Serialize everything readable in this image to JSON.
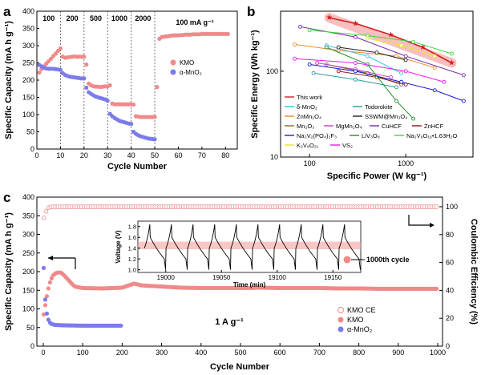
{
  "panels": {
    "a": {
      "letter": "a"
    },
    "b": {
      "letter": "b"
    },
    "c": {
      "letter": "c"
    }
  },
  "chart_data": [
    {
      "type": "scatter",
      "panel": "a",
      "xlabel": "Cycle Number",
      "ylabel": "Specific Capacity (mA h g⁻¹)",
      "xlim": [
        0,
        85
      ],
      "ylim": [
        0,
        400
      ],
      "xticks": [
        0,
        10,
        20,
        30,
        40,
        50,
        60,
        70,
        80
      ],
      "yticks": [
        0,
        50,
        100,
        150,
        200,
        250,
        300,
        350,
        400
      ],
      "segment_boundaries": [
        10,
        20,
        30,
        40,
        50
      ],
      "rate_labels": [
        "100",
        "200",
        "500",
        "1000",
        "2000",
        "100 mA g⁻¹"
      ],
      "series": [
        {
          "name": "KMO",
          "color": "#f08a8a",
          "x": [
            1,
            2,
            3,
            4,
            5,
            6,
            7,
            8,
            9,
            10,
            11,
            12,
            13,
            14,
            15,
            16,
            17,
            18,
            19,
            20,
            21,
            22,
            23,
            24,
            25,
            26,
            27,
            28,
            29,
            30,
            31,
            32,
            33,
            34,
            35,
            36,
            37,
            38,
            39,
            40,
            41,
            42,
            43,
            44,
            45,
            46,
            47,
            48,
            49,
            50,
            51,
            52,
            53,
            54,
            55,
            56,
            57,
            58,
            59,
            60,
            61,
            62,
            63,
            64,
            65,
            66,
            67,
            68,
            69,
            70,
            71,
            72,
            73,
            74,
            75,
            76,
            77,
            78,
            79,
            80,
            81
          ],
          "y": [
            222,
            232,
            240,
            248,
            255,
            262,
            270,
            277,
            285,
            292,
            268,
            265,
            266,
            267,
            268,
            269,
            268,
            268,
            268,
            268,
            245,
            190,
            185,
            182,
            181,
            181,
            180,
            181,
            182,
            182,
            185,
            132,
            130,
            130,
            130,
            130,
            130,
            130,
            130,
            130,
            129,
            95,
            94,
            93,
            93,
            93,
            93,
            93,
            93,
            93,
            180,
            320,
            325,
            326,
            327,
            328,
            329,
            330,
            330,
            330,
            331,
            331,
            332,
            332,
            332,
            333,
            333,
            333,
            333,
            334,
            334,
            334,
            334,
            334,
            334,
            334,
            334,
            334,
            334,
            334,
            334
          ]
        },
        {
          "name": "α-MnO₂",
          "color": "#7b7bea",
          "x": [
            1,
            2,
            3,
            4,
            5,
            6,
            7,
            8,
            9,
            10,
            11,
            12,
            13,
            14,
            15,
            16,
            17,
            18,
            19,
            20,
            21,
            22,
            23,
            24,
            25,
            26,
            27,
            28,
            29,
            30,
            31,
            32,
            33,
            34,
            35,
            36,
            37,
            38,
            39,
            40,
            41,
            42,
            43,
            44,
            45,
            46,
            47,
            48,
            49,
            50
          ],
          "y": [
            244,
            240,
            236,
            234,
            233,
            233,
            233,
            232,
            231,
            230,
            220,
            215,
            212,
            210,
            209,
            208,
            207,
            206,
            205,
            205,
            178,
            165,
            160,
            156,
            152,
            150,
            148,
            146,
            144,
            140,
            102,
            95,
            90,
            86,
            82,
            80,
            78,
            76,
            74,
            73,
            50,
            44,
            40,
            37,
            35,
            33,
            31,
            30,
            29,
            28
          ]
        }
      ]
    },
    {
      "type": "line",
      "panel": "b",
      "xlabel": "Specific Power (W kg⁻¹)",
      "ylabel": "Specific Energy (Wh kg⁻¹)",
      "xscale": "log",
      "yscale": "log",
      "xlim": [
        50,
        5000
      ],
      "ylim": [
        10,
        500
      ],
      "xticks": [
        100,
        1000
      ],
      "yticks": [
        10,
        100
      ],
      "series": [
        {
          "name": "This work",
          "color": "#d42020",
          "x": [
            160,
            300,
            700,
            1500,
            3000
          ],
          "y": [
            420,
            360,
            265,
            190,
            125
          ]
        },
        {
          "name": "δ-MnO₂",
          "color": "#2ec5e8",
          "x": [
            150,
            400,
            900
          ],
          "y": [
            200,
            150,
            95
          ]
        },
        {
          "name": "Todorokite",
          "color": "#2a9a9a",
          "x": [
            110,
            300,
            800
          ],
          "y": [
            95,
            80,
            65
          ]
        },
        {
          "name": "ZnMn₂O₄",
          "color": "#f08a1e",
          "x": [
            70,
            200,
            800,
            2000
          ],
          "y": [
            205,
            175,
            150,
            110
          ]
        },
        {
          "name": "SSWM@Mn₃O₄",
          "color": "#222222",
          "x": [
            200,
            500,
            1000
          ],
          "y": [
            190,
            165,
            135
          ]
        },
        {
          "name": "Mn₂O₃",
          "color": "#8b6a2a",
          "x": [
            150,
            400,
            900
          ],
          "y": [
            120,
            95,
            70
          ]
        },
        {
          "name": "MgMn₂O₄",
          "color": "#c040c0",
          "x": [
            120,
            300,
            700
          ],
          "y": [
            125,
            105,
            85
          ]
        },
        {
          "name": "CuHCF",
          "color": "#7a2aa8",
          "x": [
            80,
            300,
            1000,
            4000
          ],
          "y": [
            330,
            250,
            150,
            90
          ]
        },
        {
          "name": "ZnHCF",
          "color": "#8a1a1a",
          "x": [
            200,
            500,
            1000
          ],
          "y": [
            100,
            85,
            70
          ]
        },
        {
          "name": "Na₃V₂(PO₄)₂F₃",
          "color": "#1a1ad8",
          "x": [
            100,
            300,
            900,
            2000,
            4000
          ],
          "y": [
            120,
            100,
            75,
            60,
            45
          ]
        },
        {
          "name": "LiV₃O₈",
          "color": "#2a8a2a",
          "x": [
            150,
            400,
            800,
            1200
          ],
          "y": [
            190,
            120,
            45,
            28
          ]
        },
        {
          "name": "Na₂V₆O₁₆•1.63H₂O",
          "color": "#3ad83a",
          "x": [
            100,
            400,
            1200,
            3000
          ],
          "y": [
            300,
            260,
            220,
            160
          ]
        },
        {
          "name": "K₂V₈O₂₁",
          "color": "#e8e81a",
          "x": [
            400,
            900,
            2000
          ],
          "y": [
            240,
            200,
            150
          ]
        },
        {
          "name": "VS₂",
          "color": "#e81ae8",
          "x": [
            70,
            300,
            1000,
            2500
          ],
          "y": [
            140,
            125,
            100,
            75
          ]
        }
      ]
    },
    {
      "type": "scatter",
      "panel": "c",
      "xlabel": "Cycle Number",
      "ylabel": "Specific Capacity (mA h g⁻¹)",
      "y2label": "Coulombic Efficiency (%)",
      "xlim": [
        0,
        1000
      ],
      "ylim": [
        0,
        400
      ],
      "y2lim": [
        0,
        100
      ],
      "xticks": [
        0,
        100,
        200,
        300,
        400,
        500,
        600,
        700,
        800,
        900,
        1000
      ],
      "yticks": [
        0,
        50,
        100,
        150,
        200,
        250,
        300,
        350,
        400
      ],
      "y2ticks": [
        0,
        20,
        40,
        60,
        80,
        100
      ],
      "annotation": "1 A g⁻¹",
      "series": [
        {
          "name": "KMO CE",
          "axis": "y2",
          "color": "#f08a8a",
          "hollow": true,
          "x": [
            1,
            10,
            20,
            50,
            100,
            150,
            200,
            250,
            300,
            350,
            400,
            450,
            500,
            550,
            600,
            650,
            700,
            750,
            800,
            850,
            900,
            950,
            1000
          ],
          "y": [
            92,
            99,
            100,
            100,
            100,
            100,
            100,
            100,
            100,
            100,
            100,
            100,
            100,
            100,
            100,
            100,
            100,
            100,
            100,
            100,
            100,
            100,
            100
          ]
        },
        {
          "name": "KMO",
          "axis": "y",
          "color": "#f08a8a",
          "x": [
            1,
            5,
            10,
            15,
            20,
            25,
            30,
            35,
            40,
            45,
            50,
            60,
            70,
            80,
            100,
            150,
            200,
            230,
            250,
            300,
            350,
            400,
            450,
            500,
            550,
            600,
            650,
            700,
            750,
            800,
            850,
            900,
            950,
            1000
          ],
          "y": [
            85,
            110,
            140,
            165,
            180,
            190,
            195,
            197,
            198,
            197,
            193,
            182,
            170,
            160,
            156,
            155,
            157,
            168,
            163,
            160,
            157,
            156,
            156,
            156,
            157,
            156,
            156,
            156,
            155,
            155,
            154,
            154,
            154,
            154
          ]
        },
        {
          "name": "α-MnO₂",
          "axis": "y",
          "color": "#7b7bea",
          "x": [
            1,
            3,
            5,
            8,
            10,
            15,
            20,
            30,
            50,
            100,
            150,
            200
          ],
          "y": [
            210,
            160,
            125,
            95,
            80,
            65,
            60,
            57,
            56,
            55,
            55,
            55
          ]
        }
      ],
      "inset": {
        "xlabel": "Time (min)",
        "ylabel": "Voltage (V)",
        "xlim": [
          18975,
          19175
        ],
        "ylim": [
          0.95,
          1.9
        ],
        "xticks": [
          19000,
          19050,
          19100,
          19150
        ],
        "yticks": [
          1.0,
          1.2,
          1.4,
          1.6,
          1.8
        ],
        "band": [
          1.38,
          1.52
        ],
        "cycle_count": 10
      },
      "callout": "1000th cycle"
    }
  ]
}
